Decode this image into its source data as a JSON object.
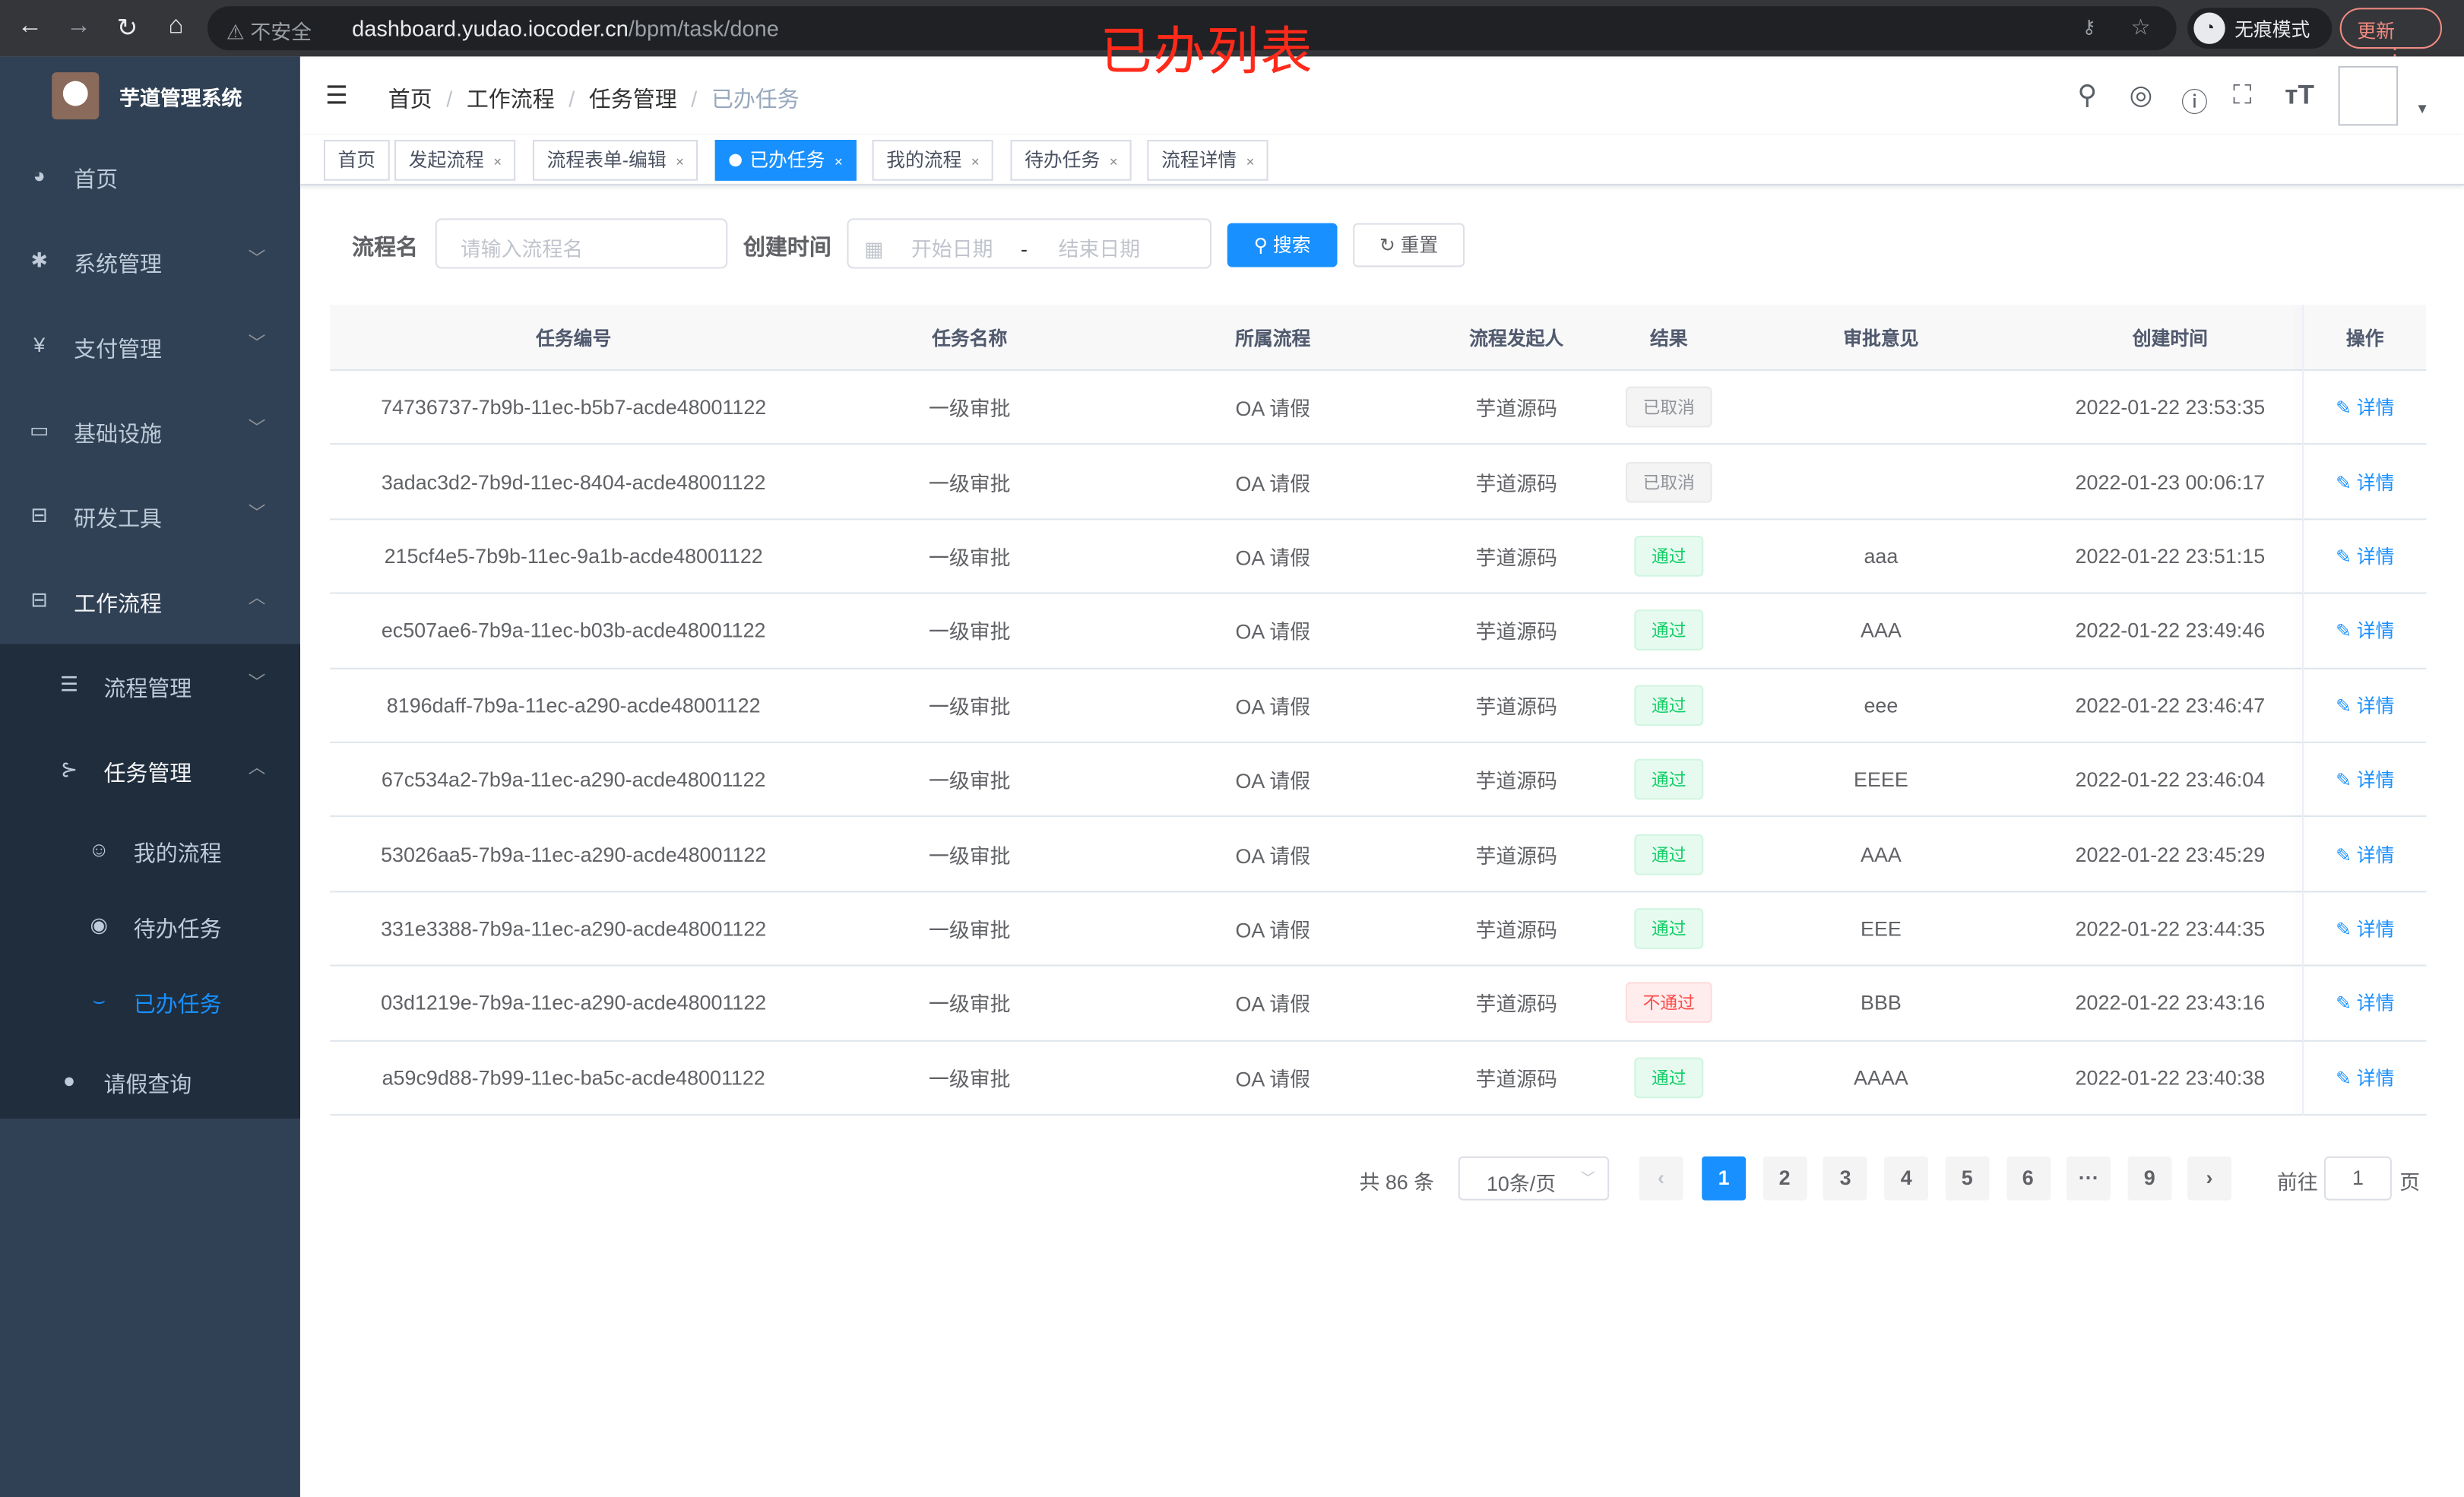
{
  "browser": {
    "security_label": "不安全",
    "url_host": "dashboard.yudao.iocoder.cn",
    "url_path": "/bpm/task/done",
    "incognito_label": "无痕模式",
    "update_label": "更新"
  },
  "overlay_title": "已办列表",
  "sidebar": {
    "title": "芋道管理系统",
    "items": [
      {
        "label": "首页",
        "icon": "dashboard-icon"
      },
      {
        "label": "系统管理",
        "icon": "gear-icon"
      },
      {
        "label": "支付管理",
        "icon": "yen-icon"
      },
      {
        "label": "基础设施",
        "icon": "monitor-icon"
      },
      {
        "label": "研发工具",
        "icon": "toolbox-icon"
      },
      {
        "label": "工作流程",
        "icon": "briefcase-icon"
      }
    ],
    "sub_items": [
      {
        "label": "流程管理",
        "icon": "list-icon"
      },
      {
        "label": "任务管理",
        "icon": "tree-icon"
      }
    ],
    "task_items": [
      {
        "label": "我的流程",
        "icon": "robot-icon"
      },
      {
        "label": "待办任务",
        "icon": "eye-icon"
      },
      {
        "label": "已办任务",
        "icon": "eye-closed-icon",
        "active": true
      }
    ],
    "leave_item": {
      "label": "请假查询",
      "icon": "user-icon"
    }
  },
  "breadcrumb": [
    "首页",
    "工作流程",
    "任务管理",
    "已办任务"
  ],
  "tags": [
    "首页",
    "发起流程",
    "流程表单-编辑",
    "已办任务",
    "我的流程",
    "待办任务",
    "流程详情"
  ],
  "active_tag": "已办任务",
  "search": {
    "name_label": "流程名",
    "name_placeholder": "请输入流程名",
    "time_label": "创建时间",
    "start_placeholder": "开始日期",
    "range_sep": "-",
    "end_placeholder": "结束日期",
    "search_button": "搜索",
    "reset_button": "重置"
  },
  "table": {
    "columns": [
      "任务编号",
      "任务名称",
      "所属流程",
      "流程发起人",
      "结果",
      "审批意见",
      "创建时间",
      "操作"
    ],
    "rows": [
      {
        "id": "74736737-7b9b-11ec-b5b7-acde48001122",
        "name": "一级审批",
        "process": "OA 请假",
        "starter": "芋道源码",
        "result": "已取消",
        "status": "gray",
        "comment": "",
        "time": "2022-01-22 23:53:35"
      },
      {
        "id": "3adac3d2-7b9d-11ec-8404-acde48001122",
        "name": "一级审批",
        "process": "OA 请假",
        "starter": "芋道源码",
        "result": "已取消",
        "status": "gray",
        "comment": "",
        "time": "2022-01-23 00:06:17"
      },
      {
        "id": "215cf4e5-7b9b-11ec-9a1b-acde48001122",
        "name": "一级审批",
        "process": "OA 请假",
        "starter": "芋道源码",
        "result": "通过",
        "status": "green",
        "comment": "aaa",
        "time": "2022-01-22 23:51:15"
      },
      {
        "id": "ec507ae6-7b9a-11ec-b03b-acde48001122",
        "name": "一级审批",
        "process": "OA 请假",
        "starter": "芋道源码",
        "result": "通过",
        "status": "green",
        "comment": "AAA",
        "time": "2022-01-22 23:49:46"
      },
      {
        "id": "8196daff-7b9a-11ec-a290-acde48001122",
        "name": "一级审批",
        "process": "OA 请假",
        "starter": "芋道源码",
        "result": "通过",
        "status": "green",
        "comment": "eee",
        "time": "2022-01-22 23:46:47"
      },
      {
        "id": "67c534a2-7b9a-11ec-a290-acde48001122",
        "name": "一级审批",
        "process": "OA 请假",
        "starter": "芋道源码",
        "result": "通过",
        "status": "green",
        "comment": "EEEE",
        "time": "2022-01-22 23:46:04"
      },
      {
        "id": "53026aa5-7b9a-11ec-a290-acde48001122",
        "name": "一级审批",
        "process": "OA 请假",
        "starter": "芋道源码",
        "result": "通过",
        "status": "green",
        "comment": "AAA",
        "time": "2022-01-22 23:45:29"
      },
      {
        "id": "331e3388-7b9a-11ec-a290-acde48001122",
        "name": "一级审批",
        "process": "OA 请假",
        "starter": "芋道源码",
        "result": "通过",
        "status": "green",
        "comment": "EEE",
        "time": "2022-01-22 23:44:35"
      },
      {
        "id": "03d1219e-7b9a-11ec-a290-acde48001122",
        "name": "一级审批",
        "process": "OA 请假",
        "starter": "芋道源码",
        "result": "不通过",
        "status": "red",
        "comment": "BBB",
        "time": "2022-01-22 23:43:16"
      },
      {
        "id": "a59c9d88-7b99-11ec-ba5c-acde48001122",
        "name": "一级审批",
        "process": "OA 请假",
        "starter": "芋道源码",
        "result": "通过",
        "status": "green",
        "comment": "AAAA",
        "time": "2022-01-22 23:40:38"
      }
    ],
    "action_label": "详情"
  },
  "pagination": {
    "total_text": "共 86 条",
    "page_size": "10条/页",
    "pages": [
      "1",
      "2",
      "3",
      "4",
      "5",
      "6",
      "···",
      "9"
    ],
    "current": "1",
    "goto_label": "前往",
    "goto_value": "1",
    "page_suffix": "页"
  },
  "colors": {
    "primary": "#1890ff",
    "sidebar": "#304156",
    "submenu": "#1f2d3d",
    "success": "#13ce66",
    "danger": "#ff4949",
    "overlay": "#ff2a1a"
  }
}
